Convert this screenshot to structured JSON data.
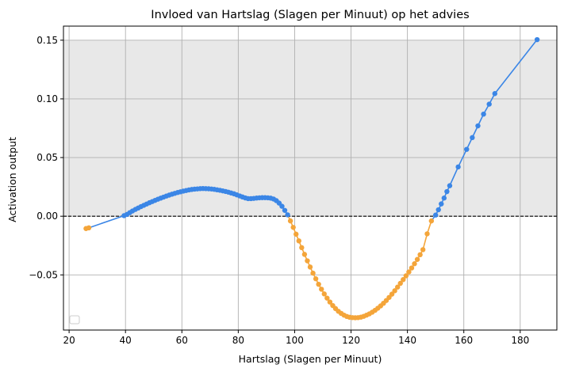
{
  "chart_data": {
    "type": "line",
    "title": "Invloed van Hartslag (Slagen per Minuut) op het advies",
    "xlabel": "Hartslag (Slagen per Minuut)",
    "ylabel": "Activation output",
    "xlim": [
      18,
      193
    ],
    "ylim": [
      -0.097,
      0.162
    ],
    "xticks": [
      20,
      40,
      60,
      80,
      100,
      120,
      140,
      160,
      180
    ],
    "yticks": [
      0.15,
      0.1,
      0.05,
      0.0,
      -0.05
    ],
    "ytick_labels": [
      "0.15",
      "0.10",
      "0.05",
      "0.00",
      "−0.05"
    ],
    "grid": true,
    "shaded_region": {
      "y_from": 0.0,
      "y_to": 0.15,
      "color": "#e8e8e8"
    },
    "reference_line": {
      "y": 0.0,
      "style": "dashed",
      "color": "#000000"
    },
    "legend": "bottom-left",
    "colors": {
      "positive": "#3b86e6",
      "negative": "#f4a53a"
    },
    "points": [
      [
        26,
        -0.0105
      ],
      [
        27,
        -0.0099
      ],
      [
        39.5,
        0.0005
      ],
      [
        40.5,
        0.0015
      ],
      [
        41.5,
        0.003
      ],
      [
        42.5,
        0.0045
      ],
      [
        43.5,
        0.0058
      ],
      [
        44.5,
        0.007
      ],
      [
        45.5,
        0.0082
      ],
      [
        46.5,
        0.0093
      ],
      [
        47.5,
        0.0104
      ],
      [
        48.5,
        0.0115
      ],
      [
        49.5,
        0.0125
      ],
      [
        50.5,
        0.0135
      ],
      [
        51.5,
        0.0145
      ],
      [
        52.5,
        0.0154
      ],
      [
        53.5,
        0.0163
      ],
      [
        54.5,
        0.0172
      ],
      [
        55.5,
        0.018
      ],
      [
        56.5,
        0.0188
      ],
      [
        57.5,
        0.0195
      ],
      [
        58.5,
        0.0202
      ],
      [
        59.5,
        0.0208
      ],
      [
        60.5,
        0.0214
      ],
      [
        61.5,
        0.0219
      ],
      [
        62.5,
        0.0224
      ],
      [
        63.5,
        0.0228
      ],
      [
        64.5,
        0.0231
      ],
      [
        65.5,
        0.0233
      ],
      [
        66.5,
        0.0235
      ],
      [
        67.5,
        0.0236
      ],
      [
        68.5,
        0.0235
      ],
      [
        69.5,
        0.0234
      ],
      [
        70.5,
        0.0232
      ],
      [
        71.5,
        0.0229
      ],
      [
        72.5,
        0.0225
      ],
      [
        73.5,
        0.0221
      ],
      [
        74.5,
        0.0216
      ],
      [
        75.5,
        0.0211
      ],
      [
        76.5,
        0.0205
      ],
      [
        77.5,
        0.0198
      ],
      [
        78.5,
        0.0191
      ],
      [
        79.5,
        0.0182
      ],
      [
        80.5,
        0.0173
      ],
      [
        81.5,
        0.0164
      ],
      [
        82.5,
        0.0156
      ],
      [
        83.5,
        0.015
      ],
      [
        84.5,
        0.015
      ],
      [
        85.5,
        0.0152
      ],
      [
        86.5,
        0.0155
      ],
      [
        87.5,
        0.0157
      ],
      [
        88.5,
        0.0158
      ],
      [
        89.5,
        0.0158
      ],
      [
        90.5,
        0.0157
      ],
      [
        91.5,
        0.0154
      ],
      [
        92.5,
        0.0147
      ],
      [
        93.5,
        0.0133
      ],
      [
        94.5,
        0.0112
      ],
      [
        95.5,
        0.0085
      ],
      [
        96.5,
        0.005
      ],
      [
        97.5,
        0.0012
      ],
      [
        98.5,
        -0.004
      ],
      [
        99.5,
        -0.0095
      ],
      [
        100.5,
        -0.0153
      ],
      [
        101.5,
        -0.021
      ],
      [
        102.5,
        -0.0268
      ],
      [
        103.5,
        -0.0325
      ],
      [
        104.5,
        -0.038
      ],
      [
        105.5,
        -0.0433
      ],
      [
        106.5,
        -0.0485
      ],
      [
        107.5,
        -0.0533
      ],
      [
        108.5,
        -0.058
      ],
      [
        109.5,
        -0.0622
      ],
      [
        110.5,
        -0.0662
      ],
      [
        111.5,
        -0.0698
      ],
      [
        112.5,
        -0.0731
      ],
      [
        113.5,
        -0.0761
      ],
      [
        114.5,
        -0.0787
      ],
      [
        115.5,
        -0.081
      ],
      [
        116.5,
        -0.0828
      ],
      [
        117.5,
        -0.0843
      ],
      [
        118.5,
        -0.0854
      ],
      [
        119.5,
        -0.0861
      ],
      [
        120.5,
        -0.0864
      ],
      [
        121.5,
        -0.0865
      ],
      [
        122.5,
        -0.0864
      ],
      [
        123.5,
        -0.086
      ],
      [
        124.5,
        -0.0853
      ],
      [
        125.5,
        -0.0843
      ],
      [
        126.5,
        -0.0832
      ],
      [
        127.5,
        -0.0818
      ],
      [
        128.5,
        -0.0802
      ],
      [
        129.5,
        -0.0784
      ],
      [
        130.5,
        -0.0764
      ],
      [
        131.5,
        -0.0742
      ],
      [
        132.5,
        -0.0718
      ],
      [
        133.5,
        -0.0692
      ],
      [
        134.5,
        -0.0664
      ],
      [
        135.5,
        -0.0635
      ],
      [
        136.5,
        -0.0604
      ],
      [
        137.5,
        -0.0572
      ],
      [
        138.5,
        -0.054
      ],
      [
        139.5,
        -0.0508
      ],
      [
        140.5,
        -0.0475
      ],
      [
        141.5,
        -0.0441
      ],
      [
        142.5,
        -0.0405
      ],
      [
        143.5,
        -0.0368
      ],
      [
        144.5,
        -0.0328
      ],
      [
        145.5,
        -0.0285
      ],
      [
        147,
        -0.015
      ],
      [
        148.5,
        -0.004
      ],
      [
        150,
        0.001
      ],
      [
        151,
        0.0055
      ],
      [
        152,
        0.0105
      ],
      [
        153,
        0.0155
      ],
      [
        154,
        0.021
      ],
      [
        155,
        0.026
      ],
      [
        158,
        0.042
      ],
      [
        161,
        0.057
      ],
      [
        163,
        0.067
      ],
      [
        165,
        0.077
      ],
      [
        167,
        0.087
      ],
      [
        169,
        0.0955
      ],
      [
        171,
        0.1045
      ],
      [
        186,
        0.1505
      ]
    ]
  }
}
